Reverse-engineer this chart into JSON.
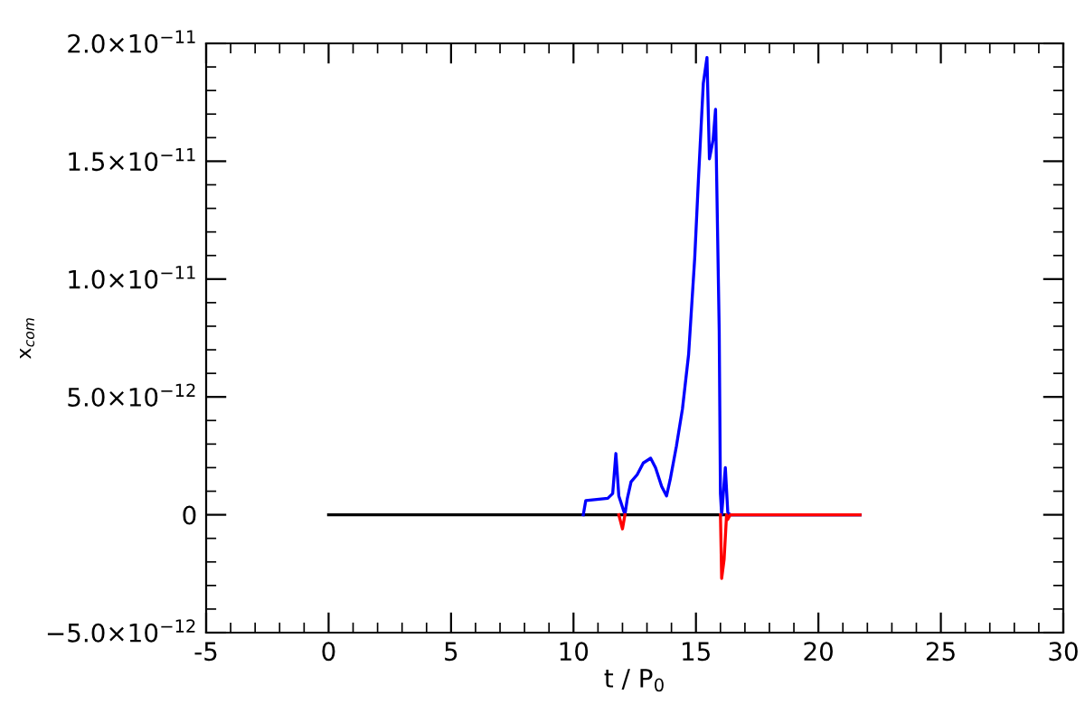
{
  "chart_data": {
    "type": "line",
    "xlabel": "t / P$_{0}$",
    "ylabel": "x$_{com}$",
    "xlim": [
      -5,
      30
    ],
    "xticks": [
      -5,
      0,
      5,
      10,
      15,
      20,
      25,
      30
    ],
    "ylim": [
      -5e-12,
      2e-11
    ],
    "yticks": [
      {
        "value": -5e-12,
        "label": "−5.0×10$^{−12}$"
      },
      {
        "value": 0,
        "label": "0"
      },
      {
        "value": 5e-12,
        "label": "5.0×10$^{−12}$"
      },
      {
        "value": 1e-11,
        "label": "1.0×10$^{−11}$"
      },
      {
        "value": 1.5e-11,
        "label": "1.5×10$^{−11}$"
      },
      {
        "value": 2e-11,
        "label": "2.0×10$^{−11}$"
      }
    ],
    "grid": false,
    "legend": false,
    "marker": "none",
    "line_style": "solid",
    "series": [
      {
        "color": "#000000",
        "x": [
          0,
          10.4,
          21.7
        ],
        "values": [
          0,
          0,
          0
        ]
      },
      {
        "color": "#0000ff",
        "x": [
          10.4,
          10.5,
          11.4,
          11.6,
          11.73,
          11.85,
          12.1,
          12.2,
          12.35,
          12.6,
          12.85,
          13.15,
          13.35,
          13.6,
          13.8,
          13.95,
          14.2,
          14.45,
          14.7,
          14.95,
          15.1,
          15.3,
          15.45,
          15.55,
          15.7,
          15.8,
          15.95,
          16.0,
          16.05,
          16.2,
          16.3,
          16.4,
          21.7
        ],
        "values": [
          0,
          6e-13,
          7e-13,
          9e-13,
          2.6e-12,
          8e-13,
          0,
          7e-13,
          1.4e-12,
          1.7e-12,
          2.2e-12,
          2.4e-12,
          2e-12,
          1.2e-12,
          8e-13,
          1.5e-12,
          2.9e-12,
          4.5e-12,
          6.8e-12,
          1.09e-11,
          1.42e-11,
          1.83e-11,
          1.94e-11,
          1.51e-11,
          1.59e-11,
          1.72e-11,
          7.8e-12,
          9e-13,
          0,
          2e-12,
          1e-13,
          0,
          0
        ]
      },
      {
        "color": "#ff0000",
        "x": [
          11.85,
          12.0,
          12.1,
          14.0,
          16.0,
          16.05,
          16.15,
          16.25,
          16.3,
          16.4,
          21.7
        ],
        "values": [
          0,
          -6e-13,
          0,
          null,
          0,
          -2.7e-12,
          -1.9e-12,
          0,
          -2e-13,
          0,
          0
        ]
      }
    ]
  }
}
